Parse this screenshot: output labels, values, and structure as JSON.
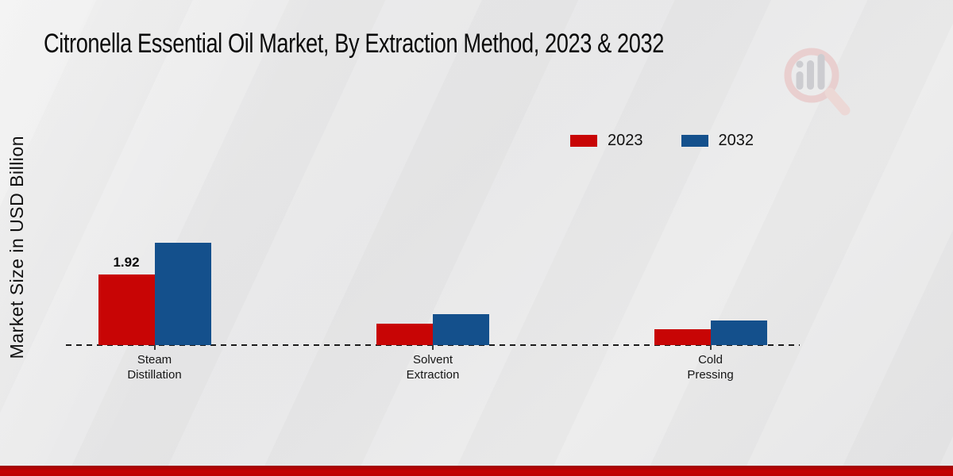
{
  "title": "Citronella Essential Oil Market, By Extraction Method, 2023 & 2032",
  "y_axis_label": "Market Size in USD Billion",
  "colors": {
    "bar_red": "#c80505",
    "bar_blue": "#14508c",
    "footer_red": "#c40404",
    "background": "#e8e8e8",
    "text": "#0b0b0b"
  },
  "watermark": "magnifier-bar-chart-logo",
  "chart_data": {
    "type": "bar",
    "title": "Citronella Essential Oil Market, By Extraction Method, 2023 & 2032",
    "categories": [
      "Steam\nDistillation",
      "Solvent\nExtraction",
      "Cold\nPressing"
    ],
    "series": [
      {
        "name": "2023",
        "color": "#c80505",
        "values": [
          1.92,
          0.58,
          0.43
        ]
      },
      {
        "name": "2032",
        "color": "#14508c",
        "values": [
          2.78,
          0.84,
          0.67
        ]
      }
    ],
    "annotations": [
      {
        "series": 0,
        "category": 0,
        "text": "1.92"
      }
    ],
    "xlabel": "",
    "ylabel": "Market Size in USD Billion",
    "ylim": [
      0,
      4
    ],
    "grid": false,
    "legend_position": "top-right",
    "baseline_style": "dashed"
  }
}
